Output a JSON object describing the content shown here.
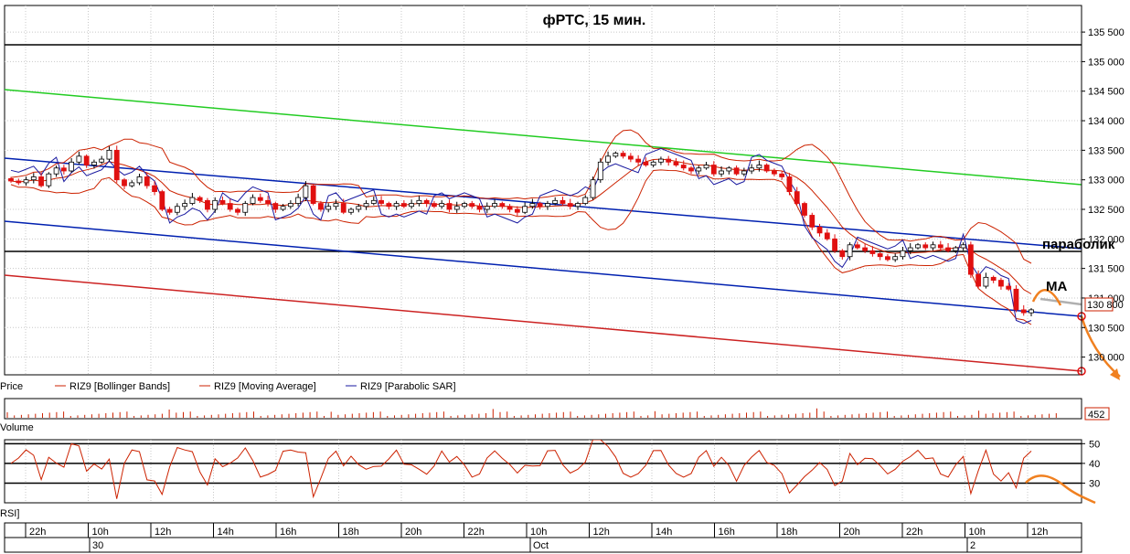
{
  "chart_data": [
    {
      "type": "candlestick",
      "title": "фРТС,  15 мин.",
      "y_ticks": [
        "135 500",
        "135 000",
        "134 500",
        "134 000",
        "133 500",
        "133 000",
        "132 500",
        "132 000",
        "131 500",
        "131 000",
        "130 500",
        "130 000"
      ],
      "ylim": [
        129700,
        135950
      ],
      "last_price_label": "130 800",
      "last_price": 130800,
      "legend": [
        {
          "name": "Price",
          "color": "#000000"
        },
        {
          "name": "RIZ9 [Bollinger Bands]",
          "color": "#cc2200"
        },
        {
          "name": "RIZ9 [Moving Average]",
          "color": "#cc2200"
        },
        {
          "name": "RIZ9 [Parabolic SAR]",
          "color": "#1a1aa0"
        }
      ],
      "annotations": [
        "параболик",
        "МА"
      ],
      "grid": true,
      "candles_close": [
        132980,
        132950,
        133000,
        133050,
        132900,
        133100,
        133200,
        133150,
        133300,
        133400,
        133250,
        133300,
        133350,
        133500,
        133000,
        132900,
        132950,
        133050,
        132900,
        132800,
        132500,
        132450,
        132550,
        132600,
        132700,
        132650,
        132500,
        132650,
        132600,
        132500,
        132450,
        132600,
        132700,
        132650,
        132600,
        132500,
        132550,
        132600,
        132700,
        132900,
        132600,
        132500,
        132550,
        132600,
        132450,
        132500,
        132550,
        132600,
        132650,
        132600,
        132550,
        132600,
        132550,
        132600,
        132650,
        132600,
        132550,
        132600,
        132500,
        132550,
        132600,
        132550,
        132500,
        132550,
        132600,
        132550,
        132500,
        132450,
        132550,
        132600,
        132550,
        132600,
        132650,
        132600,
        132550,
        132600,
        132700,
        133000,
        133300,
        133400,
        133450,
        133400,
        133350,
        133300,
        133250,
        133300,
        133350,
        133300,
        133250,
        133200,
        133150,
        133200,
        133250,
        133100,
        133150,
        133200,
        133100,
        133150,
        133200,
        133250,
        133150,
        133100,
        133050,
        132800,
        132600,
        132400,
        132200,
        132100,
        132000,
        131800,
        131700,
        131900,
        131850,
        131800,
        131750,
        131700,
        131650,
        131700,
        131800,
        131850,
        131900,
        131850,
        131900,
        131850,
        131800,
        131850,
        131900,
        131400,
        131200,
        131350,
        131300,
        131200,
        131150,
        130800,
        130750,
        130800
      ]
    },
    {
      "type": "bar",
      "name": "Volume",
      "last_value_label": "452",
      "last_value": 452
    },
    {
      "type": "line",
      "name": "RSI",
      "y_ticks": [
        "50",
        "40",
        "30"
      ],
      "ylim": [
        20,
        52
      ],
      "levels": [
        50,
        40,
        30
      ]
    }
  ],
  "x_axis": {
    "time_labels": [
      "22h",
      "10h",
      "12h",
      "14h",
      "16h",
      "18h",
      "20h",
      "22h",
      "10h",
      "12h",
      "14h",
      "16h",
      "18h",
      "20h",
      "22h",
      "10h",
      "12h"
    ],
    "date_labels": [
      "30",
      "Oct",
      "2"
    ]
  },
  "colors": {
    "candle_up": "#ffffff",
    "candle_down": "#e01010",
    "bollinger": "#cc2200",
    "sar": "#1a1aa0",
    "channel_upper": "#22cc22",
    "channel_mid": "#0020b0",
    "channel_lower": "#cc2222",
    "forecast": "#f08020"
  }
}
